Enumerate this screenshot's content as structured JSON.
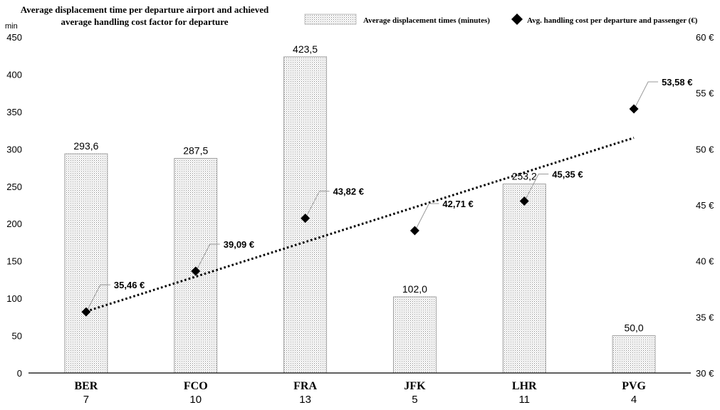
{
  "chart_data": {
    "type": "bar",
    "title": "Average displacement time per departure airport and achieved average handling cost factor for departure",
    "title_lines": [
      "Average displacement time per departure airport and achieved",
      "average handling cost factor for departure"
    ],
    "categories": [
      "BER",
      "FCO",
      "FRA",
      "JFK",
      "LHR",
      "PVG"
    ],
    "category_sublabels": [
      "7",
      "10",
      "13",
      "5",
      "11",
      "4"
    ],
    "y_unit": "min",
    "ylim": [
      0,
      450
    ],
    "y_ticks": [
      0,
      50,
      100,
      150,
      200,
      250,
      300,
      350,
      400,
      450
    ],
    "y2lim": [
      30,
      60
    ],
    "y2_ticks": [
      30,
      35,
      40,
      45,
      50,
      55,
      60
    ],
    "y2_tick_labels": [
      "30 €",
      "35 €",
      "40 €",
      "45 €",
      "50 €",
      "55 €",
      "60 €"
    ],
    "legend_position": "top-right",
    "grid": false,
    "series": [
      {
        "name": "Average displacement times (minutes)",
        "type": "bar",
        "axis": "left",
        "values": [
          293.6,
          287.5,
          423.5,
          102.0,
          253.2,
          50.0
        ],
        "labels": [
          "293,6",
          "287,5",
          "423,5",
          "102,0",
          "253,2",
          "50,0"
        ],
        "pattern": "dotted"
      },
      {
        "name": "Avg. handling cost per departure and passenger (€)",
        "type": "scatter",
        "axis": "right",
        "marker": "diamond",
        "values": [
          35.46,
          39.09,
          43.82,
          42.71,
          45.35,
          53.58
        ],
        "labels": [
          "35,46 €",
          "39,09 €",
          "43,82 €",
          "42,71 €",
          "45,35 €",
          "53,58 €"
        ]
      }
    ],
    "trendline": {
      "series": "Avg. handling cost per departure and passenger (€)",
      "kind": "linear",
      "style": "dotted",
      "start": 35.5,
      "end": 51.0
    }
  }
}
